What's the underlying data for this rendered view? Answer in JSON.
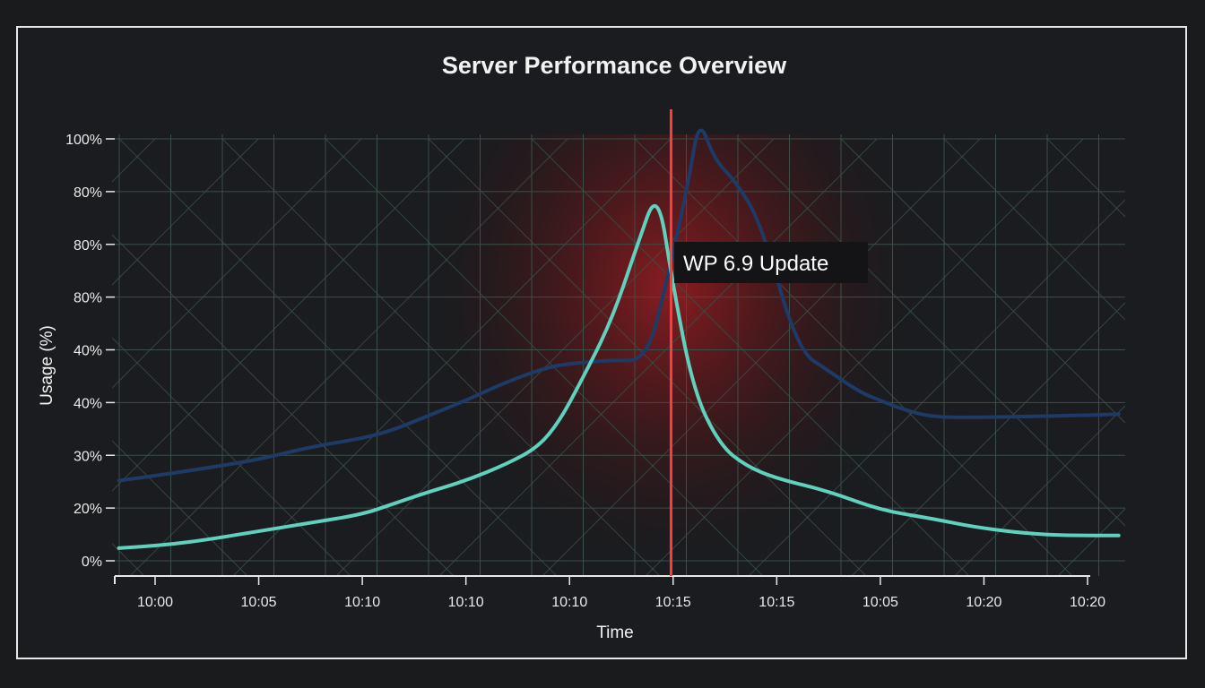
{
  "chart_data": {
    "type": "line",
    "title": "Server Performance Overview",
    "xlabel": "Time",
    "ylabel": "Usage (%)",
    "x_tick_labels": [
      "10:00",
      "10:05",
      "10:10",
      "10:10",
      "10:10",
      "10:15",
      "10:15",
      "10:05",
      "10:20",
      "10:20"
    ],
    "y_tick_labels": [
      "0%",
      "20%",
      "30%",
      "40%",
      "40%",
      "80%",
      "80%",
      "80%",
      "100%"
    ],
    "grid": true,
    "legend": "none",
    "x_domain": [
      -0.25,
      9.35
    ],
    "series": [
      {
        "color": "#1e3a66",
        "x": [
          -0.35,
          0.1,
          0.5,
          1.0,
          1.5,
          2.0,
          2.3,
          2.6,
          3.0,
          3.4,
          3.8,
          4.1,
          4.4,
          4.75,
          4.95,
          5.15,
          5.25,
          5.4,
          5.6,
          5.85,
          6.2,
          6.5,
          6.8,
          7.0,
          7.2,
          7.5,
          8.0,
          8.5,
          9.0,
          9.3
        ],
        "y": [
          7.6,
          8.2,
          8.8,
          9.6,
          10.8,
          11.6,
          12.4,
          13.6,
          15.2,
          17.0,
          18.4,
          18.8,
          19.0,
          19.0,
          27.0,
          36.0,
          42.0,
          38.0,
          36.0,
          32.0,
          20.0,
          18.0,
          16.0,
          15.2,
          14.4,
          13.6,
          13.6,
          13.7,
          13.8,
          13.9
        ],
        "y_note": "blue series"
      },
      {
        "color": "#5fd1bc",
        "x": [
          -0.35,
          0.1,
          0.5,
          1.0,
          1.5,
          2.0,
          2.3,
          2.6,
          3.0,
          3.4,
          3.7,
          3.9,
          4.1,
          4.4,
          4.65,
          4.85,
          5.0,
          5.2,
          5.45,
          5.7,
          6.0,
          6.5,
          7.0,
          7.5,
          7.9,
          8.4,
          8.8,
          9.3
        ],
        "y": [
          1.2,
          1.5,
          2.0,
          2.8,
          3.6,
          4.4,
          5.4,
          6.4,
          7.6,
          9.2,
          10.8,
          13.2,
          16.8,
          22.6,
          29.8,
          35.4,
          26.0,
          16.0,
          11.0,
          9.0,
          7.8,
          6.6,
          4.8,
          4.0,
          3.2,
          2.6,
          2.4,
          2.4
        ],
        "y_note": "teal series"
      }
    ],
    "annotation": {
      "label": "WP 6.9 Update",
      "x": 4.98,
      "color": "#ff3b3b"
    }
  }
}
